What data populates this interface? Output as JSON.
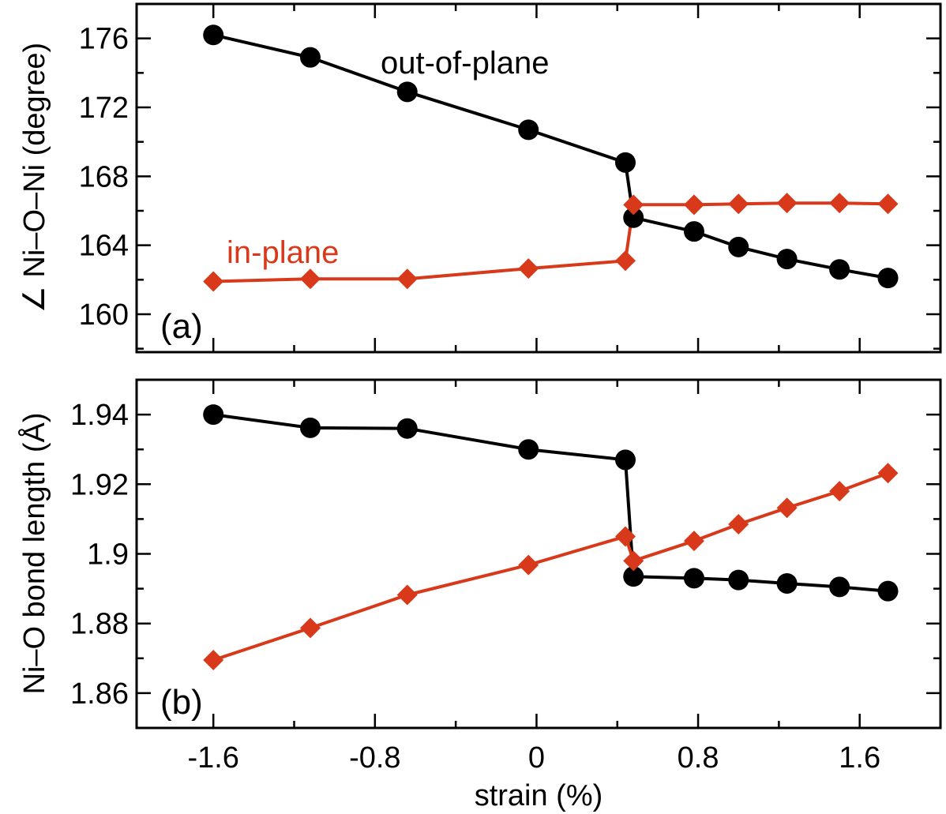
{
  "chart_data": [
    {
      "type": "line",
      "panel_label": "(a)",
      "ylabel": "∠ Ni–O–Ni (degree)",
      "ylim": [
        157.8,
        178.0
      ],
      "y_ticks_major": [
        160,
        164,
        168,
        172,
        176
      ],
      "y_tick_labels": [
        "160",
        "164",
        "168",
        "172",
        "176"
      ],
      "xlim": [
        -1.98,
        2.0
      ],
      "x_ticks_major": [
        -1.6,
        -0.8,
        0,
        0.8,
        1.6
      ],
      "x_tick_labels": [],
      "annotations": [
        {
          "text": "out-of-plane",
          "series": "out-of-plane",
          "color": "#000000"
        },
        {
          "text": "in-plane",
          "series": "in-plane",
          "color": "#d7391a"
        }
      ],
      "series": [
        {
          "name": "out-of-plane",
          "color": "#000000",
          "marker": "circle",
          "x": [
            -1.6,
            -1.12,
            -0.64,
            -0.04,
            0.44,
            0.48,
            0.78,
            1.0,
            1.24,
            1.5,
            1.74
          ],
          "y": [
            176.2,
            174.9,
            172.9,
            170.7,
            168.8,
            165.6,
            164.8,
            163.9,
            163.2,
            162.6,
            162.1
          ]
        },
        {
          "name": "in-plane",
          "color": "#d7391a",
          "marker": "diamond",
          "x": [
            -1.6,
            -1.12,
            -0.64,
            -0.04,
            0.44,
            0.48,
            0.78,
            1.0,
            1.24,
            1.5,
            1.74
          ],
          "y": [
            161.9,
            162.05,
            162.05,
            162.65,
            163.1,
            166.35,
            166.35,
            166.4,
            166.45,
            166.45,
            166.4
          ]
        }
      ]
    },
    {
      "type": "line",
      "panel_label": "(b)",
      "ylabel": "Ni–O bond length (Å)",
      "ylim": [
        1.85,
        1.95
      ],
      "y_ticks_major": [
        1.86,
        1.88,
        1.9,
        1.92,
        1.94
      ],
      "y_tick_labels": [
        "1.86",
        "1.88",
        "1.9",
        "1.92",
        "1.94"
      ],
      "xlabel": "strain (%)",
      "xlim": [
        -1.98,
        2.0
      ],
      "x_ticks_major": [
        -1.6,
        -0.8,
        0,
        0.8,
        1.6
      ],
      "x_tick_labels": [
        "-1.6",
        "-0.8",
        "0",
        "0.8",
        "1.6"
      ],
      "series": [
        {
          "name": "out-of-plane",
          "color": "#000000",
          "marker": "circle",
          "x": [
            -1.6,
            -1.12,
            -0.64,
            -0.04,
            0.44,
            0.48,
            0.78,
            1.0,
            1.24,
            1.5,
            1.74
          ],
          "y": [
            1.94,
            1.9362,
            1.936,
            1.93,
            1.927,
            1.8935,
            1.893,
            1.8925,
            1.8915,
            1.8905,
            1.8893
          ]
        },
        {
          "name": "in-plane",
          "color": "#d7391a",
          "marker": "diamond",
          "x": [
            -1.6,
            -1.12,
            -0.64,
            -0.04,
            0.44,
            0.48,
            0.78,
            1.0,
            1.24,
            1.5,
            1.74
          ],
          "y": [
            1.8695,
            1.8787,
            1.8882,
            1.8968,
            1.905,
            1.898,
            1.9037,
            1.9085,
            1.9132,
            1.918,
            1.9232
          ]
        }
      ]
    }
  ]
}
